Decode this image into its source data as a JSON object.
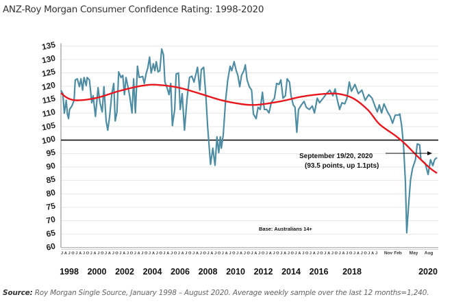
{
  "chart_data": {
    "type": "line",
    "title": "ANZ-Roy Morgan Consumer Confidence Rating: 1998-2020",
    "ylim": [
      60,
      135
    ],
    "yticks": [
      60,
      65,
      70,
      75,
      80,
      85,
      90,
      95,
      100,
      105,
      110,
      115,
      120,
      125,
      130,
      135
    ],
    "month_tick_pattern": [
      "J",
      "A",
      "J",
      "O"
    ],
    "month_tick_years": [
      1998,
      2019
    ],
    "late_month_ticks": [
      {
        "label": "Nov",
        "x": 2019.83
      },
      {
        "label": "Feb",
        "x": 2020.08
      },
      {
        "label": "May",
        "x": 2020.33
      },
      {
        "label": "Aug",
        "x": 2020.58
      }
    ],
    "year_labels": [
      "1998",
      "2000",
      "2002",
      "2004",
      "2006",
      "2008",
      "2010",
      "2012",
      "2014",
      "2016",
      "2018",
      "2020"
    ],
    "grid": true,
    "reference_line": 100,
    "colors": {
      "series": "#4e8ca3",
      "trend": "#e8161c",
      "reference": "#111111",
      "grid": "#e6e6e6"
    },
    "annotation": {
      "line1": "September 19/20, 2020",
      "line2": "(93.5 points, up 1.1pts)"
    },
    "base_note": "Base: Australians 14+",
    "series": [
      {
        "values": [
          [
            1998.0,
            118.5
          ],
          [
            1998.13,
            117.3
          ],
          [
            1998.23,
            110
          ],
          [
            1998.36,
            114.8
          ],
          [
            1998.44,
            109.7
          ],
          [
            1998.52,
            108
          ],
          [
            1998.59,
            111.4
          ],
          [
            1998.75,
            112.7
          ],
          [
            1998.9,
            114.8
          ],
          [
            1998.98,
            122.4
          ],
          [
            1999.12,
            122.8
          ],
          [
            1999.26,
            119.9
          ],
          [
            1999.37,
            122.8
          ],
          [
            1999.48,
            118.6
          ],
          [
            1999.58,
            123.3
          ],
          [
            1999.73,
            120.3
          ],
          [
            1999.79,
            123.3
          ],
          [
            1999.95,
            122.4
          ],
          [
            2000.11,
            113.9
          ],
          [
            2000.2,
            116.5
          ],
          [
            2000.36,
            108.8
          ],
          [
            2000.54,
            119.5
          ],
          [
            2000.67,
            113.9
          ],
          [
            2000.82,
            110.5
          ],
          [
            2000.94,
            119.9
          ],
          [
            2001.09,
            107.1
          ],
          [
            2001.2,
            103.7
          ],
          [
            2001.33,
            108.8
          ],
          [
            2001.48,
            117.3
          ],
          [
            2001.61,
            121.1
          ],
          [
            2001.71,
            107.1
          ],
          [
            2001.83,
            110.5
          ],
          [
            2001.95,
            125.4
          ],
          [
            2002.11,
            123.3
          ],
          [
            2002.23,
            124.1
          ],
          [
            2002.34,
            116.9
          ],
          [
            2002.45,
            123.3
          ],
          [
            2002.58,
            119.9
          ],
          [
            2002.7,
            116.5
          ],
          [
            2002.86,
            110.1
          ],
          [
            2002.97,
            122.8
          ],
          [
            2003.09,
            110.1
          ],
          [
            2003.23,
            127.5
          ],
          [
            2003.35,
            123.3
          ],
          [
            2003.59,
            123.7
          ],
          [
            2003.7,
            121.1
          ],
          [
            2003.82,
            124.6
          ],
          [
            2003.95,
            127.1
          ],
          [
            2004.06,
            130.9
          ],
          [
            2004.17,
            125
          ],
          [
            2004.32,
            128.4
          ],
          [
            2004.42,
            125.8
          ],
          [
            2004.52,
            129.2
          ],
          [
            2004.64,
            125.4
          ],
          [
            2004.76,
            125.8
          ],
          [
            2004.89,
            133.9
          ],
          [
            2005.01,
            131.8
          ],
          [
            2005.11,
            121.6
          ],
          [
            2005.26,
            119.5
          ],
          [
            2005.39,
            116.9
          ],
          [
            2005.51,
            121.1
          ],
          [
            2005.62,
            105.4
          ],
          [
            2005.78,
            111.4
          ],
          [
            2005.88,
            124.6
          ],
          [
            2006.04,
            125
          ],
          [
            2006.16,
            111.4
          ],
          [
            2006.29,
            117.3
          ],
          [
            2006.45,
            103.7
          ],
          [
            2006.63,
            115.6
          ],
          [
            2006.79,
            123.3
          ],
          [
            2006.95,
            123.8
          ],
          [
            2007.1,
            121.6
          ],
          [
            2007.34,
            127.1
          ],
          [
            2007.5,
            118.6
          ],
          [
            2007.6,
            126.2
          ],
          [
            2007.76,
            127.1
          ],
          [
            2007.92,
            115.6
          ],
          [
            2008.04,
            104.6
          ],
          [
            2008.23,
            91
          ],
          [
            2008.39,
            97
          ],
          [
            2008.54,
            90.6
          ],
          [
            2008.67,
            101.2
          ],
          [
            2008.79,
            95.3
          ],
          [
            2008.9,
            101.2
          ],
          [
            2008.97,
            97
          ],
          [
            2009.1,
            102
          ],
          [
            2009.26,
            114.8
          ],
          [
            2009.41,
            122.4
          ],
          [
            2009.57,
            127.5
          ],
          [
            2009.68,
            125.8
          ],
          [
            2009.84,
            129.2
          ],
          [
            2009.99,
            125.8
          ],
          [
            2010.1,
            124.1
          ],
          [
            2010.23,
            119.9
          ],
          [
            2010.35,
            124.1
          ],
          [
            2010.51,
            125.8
          ],
          [
            2010.61,
            128
          ],
          [
            2010.73,
            122.4
          ],
          [
            2010.88,
            119.9
          ],
          [
            2011.04,
            118.6
          ],
          [
            2011.16,
            109.7
          ],
          [
            2011.35,
            108
          ],
          [
            2011.48,
            112.2
          ],
          [
            2011.63,
            111.4
          ],
          [
            2011.78,
            117.8
          ],
          [
            2011.91,
            111.4
          ],
          [
            2012.07,
            111.4
          ],
          [
            2012.23,
            110.1
          ],
          [
            2012.38,
            113.9
          ],
          [
            2012.6,
            115.6
          ],
          [
            2012.75,
            121.1
          ],
          [
            2012.91,
            120.7
          ],
          [
            2013.04,
            122.4
          ],
          [
            2013.19,
            115.6
          ],
          [
            2013.35,
            116.5
          ],
          [
            2013.47,
            122.8
          ],
          [
            2013.63,
            121.6
          ],
          [
            2013.74,
            116.5
          ],
          [
            2013.89,
            113.1
          ],
          [
            2014.01,
            112.2
          ],
          [
            2014.13,
            102.9
          ],
          [
            2014.25,
            111.4
          ],
          [
            2014.44,
            113.1
          ],
          [
            2014.63,
            114.4
          ],
          [
            2014.78,
            112.2
          ],
          [
            2014.99,
            111.4
          ],
          [
            2015.19,
            112.7
          ],
          [
            2015.34,
            110.1
          ],
          [
            2015.53,
            115.6
          ],
          [
            2015.69,
            113.9
          ],
          [
            2015.93,
            115.6
          ],
          [
            2016.16,
            117.3
          ],
          [
            2016.39,
            118.6
          ],
          [
            2016.6,
            116.5
          ],
          [
            2016.75,
            119
          ],
          [
            2016.91,
            114.8
          ],
          [
            2017.06,
            111.4
          ],
          [
            2017.22,
            113.9
          ],
          [
            2017.41,
            113.5
          ],
          [
            2017.56,
            115.6
          ],
          [
            2017.72,
            121.6
          ],
          [
            2017.87,
            118.2
          ],
          [
            2018.11,
            120.7
          ],
          [
            2018.34,
            117.3
          ],
          [
            2018.58,
            118.6
          ],
          [
            2018.81,
            114.8
          ],
          [
            2019.05,
            116.9
          ],
          [
            2019.28,
            115.6
          ],
          [
            2019.47,
            112.7
          ],
          [
            2019.55,
            110.5
          ],
          [
            2019.6,
            113.1
          ],
          [
            2019.66,
            110.1
          ],
          [
            2019.72,
            113.5
          ],
          [
            2019.81,
            110.5
          ],
          [
            2019.88,
            108.8
          ],
          [
            2019.94,
            106.3
          ],
          [
            2020.01,
            109.3
          ],
          [
            2020.09,
            109.3
          ],
          [
            2020.11,
            109.7
          ],
          [
            2020.14,
            105.4
          ],
          [
            2020.17,
            97.8
          ],
          [
            2020.2,
            84.2
          ],
          [
            2020.22,
            65.5
          ],
          [
            2020.25,
            75.7
          ],
          [
            2020.28,
            85.1
          ],
          [
            2020.31,
            89.3
          ],
          [
            2020.36,
            92.7
          ],
          [
            2020.39,
            98.6
          ],
          [
            2020.43,
            98.2
          ],
          [
            2020.45,
            92.7
          ],
          [
            2020.49,
            92
          ],
          [
            2020.52,
            91.5
          ],
          [
            2020.57,
            87.2
          ],
          [
            2020.61,
            92.7
          ],
          [
            2020.65,
            90.5
          ],
          [
            2020.68,
            92.7
          ],
          [
            2020.72,
            93.5
          ]
        ]
      },
      {
        "values": [
          [
            1998.0,
            117.5
          ],
          [
            1998.5,
            115.5
          ],
          [
            1999.2,
            114.8
          ],
          [
            2000.5,
            115.8
          ],
          [
            2002.0,
            118.3
          ],
          [
            2003.5,
            120.2
          ],
          [
            2004.5,
            120.6
          ],
          [
            2006.0,
            119.6
          ],
          [
            2007.5,
            117.3
          ],
          [
            2009.0,
            114.8
          ],
          [
            2010.5,
            113.3
          ],
          [
            2011.5,
            113.2
          ],
          [
            2013.0,
            114.4
          ],
          [
            2014.5,
            116.2
          ],
          [
            2016.0,
            117.2
          ],
          [
            2017.0,
            117.2
          ],
          [
            2018.0,
            115.5
          ],
          [
            2019.0,
            111.2
          ],
          [
            2019.6,
            106
          ],
          [
            2020.0,
            101.8
          ],
          [
            2020.2,
            98.5
          ],
          [
            2020.4,
            93.8
          ],
          [
            2020.6,
            89.6
          ],
          [
            2020.72,
            87.7
          ]
        ]
      }
    ]
  },
  "source": {
    "label": "Source:",
    "text": " Roy Morgan Single Source, January 1998 – August 2020. Average weekly sample over the last 12 months=1,240."
  }
}
